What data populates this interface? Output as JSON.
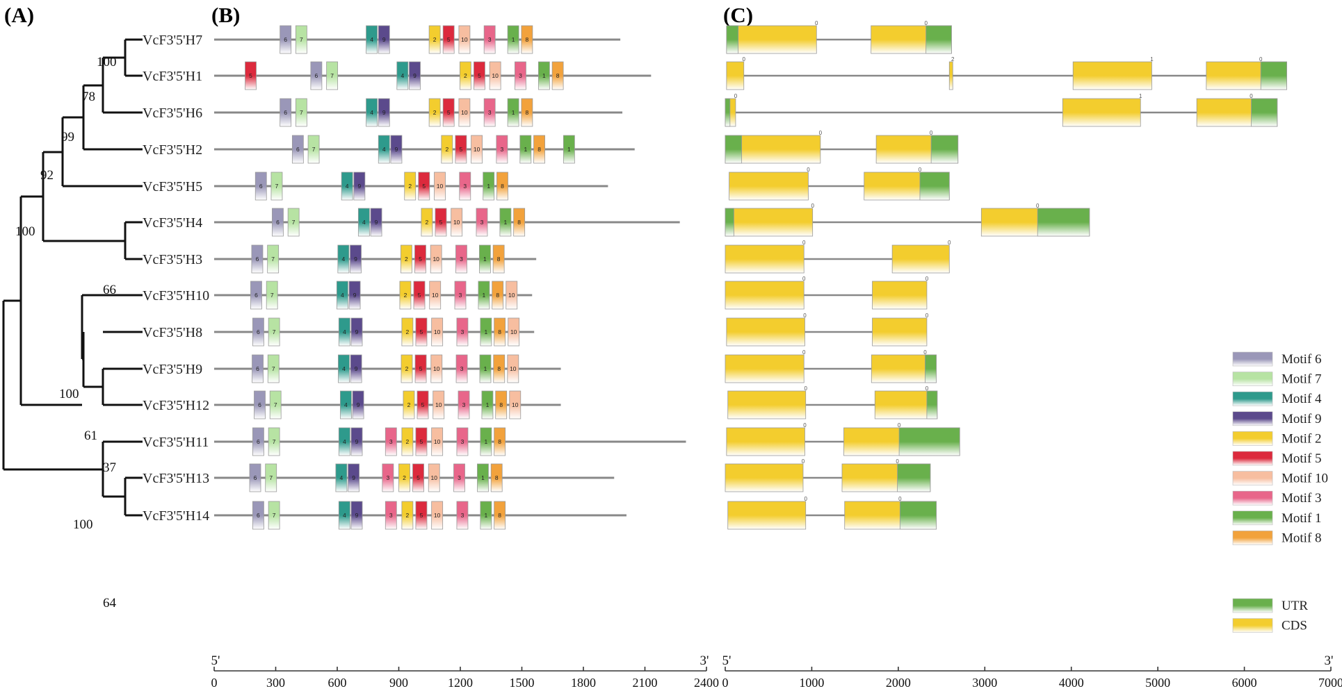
{
  "panels": {
    "a": "(A)",
    "b": "(B)",
    "c": "(C)"
  },
  "genes": [
    {
      "name": "VcF3'5'H7",
      "len": 1980,
      "motifs": [
        [
          "6",
          348
        ],
        [
          "7",
          425
        ],
        [
          "4",
          768
        ],
        [
          "9",
          828
        ],
        [
          "2",
          1075
        ],
        [
          "5",
          1143
        ],
        [
          "10",
          1220
        ],
        [
          "3",
          1343
        ],
        [
          "1",
          1458
        ],
        [
          "8",
          1525
        ]
      ],
      "gene": [
        [
          15,
          1055
        ],
        [
          1685,
          2615
        ]
      ],
      "utr": [
        [
          15,
          150
        ],
        [
          2320,
          2615
        ]
      ],
      "phase": [
        [
          1055,
          "0"
        ],
        [
          2320,
          "0"
        ]
      ]
    },
    {
      "name": "VcF3'5'H1",
      "len": 2130,
      "motifs": [
        [
          "5",
          178
        ],
        [
          "6",
          498
        ],
        [
          "7",
          575
        ],
        [
          "4",
          918
        ],
        [
          "9",
          978
        ],
        [
          "2",
          1225
        ],
        [
          "5",
          1293
        ],
        [
          "10",
          1370
        ],
        [
          "3",
          1493
        ],
        [
          "1",
          1608
        ],
        [
          "8",
          1675
        ]
      ],
      "gene": [
        [
          15,
          215
        ],
        [
          2590,
          2630
        ],
        [
          4020,
          4930
        ],
        [
          5560,
          6490
        ]
      ],
      "utr": [
        [
          6190,
          6490
        ]
      ],
      "phase": [
        [
          215,
          "0"
        ],
        [
          2630,
          "2"
        ],
        [
          4930,
          "1"
        ],
        [
          6190,
          "0"
        ]
      ]
    },
    {
      "name": "VcF3'5'H6",
      "len": 1990,
      "motifs": [
        [
          "6",
          348
        ],
        [
          "7",
          425
        ],
        [
          "4",
          768
        ],
        [
          "9",
          828
        ],
        [
          "2",
          1075
        ],
        [
          "5",
          1143
        ],
        [
          "10",
          1220
        ],
        [
          "3",
          1343
        ],
        [
          "1",
          1458
        ],
        [
          "8",
          1525
        ]
      ],
      "gene": [
        [
          0,
          120
        ],
        [
          3900,
          4800
        ],
        [
          5450,
          6380
        ]
      ],
      "utr": [
        [
          0,
          55
        ],
        [
          6080,
          6380
        ]
      ],
      "phase": [
        [
          120,
          "0"
        ],
        [
          4800,
          "1"
        ],
        [
          6080,
          "0"
        ]
      ]
    },
    {
      "name": "VcF3'5'H2",
      "len": 2050,
      "motifs": [
        [
          "6",
          408
        ],
        [
          "7",
          485
        ],
        [
          "4",
          828
        ],
        [
          "9",
          888
        ],
        [
          "2",
          1135
        ],
        [
          "5",
          1203
        ],
        [
          "10",
          1280
        ],
        [
          "3",
          1403
        ],
        [
          "1",
          1518
        ],
        [
          "8",
          1585
        ],
        [
          "1",
          1730
        ]
      ],
      "gene": [
        [
          0,
          1100
        ],
        [
          1745,
          2690
        ]
      ],
      "utr": [
        [
          0,
          190
        ],
        [
          2380,
          2690
        ]
      ],
      "phase": [
        [
          1100,
          "0"
        ],
        [
          2380,
          "0"
        ]
      ]
    },
    {
      "name": "VcF3'5'H5",
      "len": 1920,
      "motifs": [
        [
          "6",
          228
        ],
        [
          "7",
          305
        ],
        [
          "4",
          648
        ],
        [
          "9",
          708
        ],
        [
          "2",
          955
        ],
        [
          "5",
          1023
        ],
        [
          "10",
          1100
        ],
        [
          "3",
          1223
        ],
        [
          "1",
          1338
        ],
        [
          "8",
          1405
        ]
      ],
      "gene": [
        [
          45,
          960
        ],
        [
          1605,
          2590
        ]
      ],
      "utr": [
        [
          2250,
          2590
        ]
      ],
      "phase": [
        [
          960,
          "0"
        ],
        [
          2250,
          "0"
        ]
      ]
    },
    {
      "name": "VcF3'5'H4",
      "len": 2270,
      "motifs": [
        [
          "6",
          310
        ],
        [
          "7",
          387
        ],
        [
          "4",
          730
        ],
        [
          "9",
          790
        ],
        [
          "2",
          1037
        ],
        [
          "5",
          1105
        ],
        [
          "10",
          1182
        ],
        [
          "3",
          1305
        ],
        [
          "1",
          1420
        ],
        [
          "8",
          1487
        ]
      ],
      "gene": [
        [
          0,
          1010
        ],
        [
          2960,
          4210
        ]
      ],
      "utr": [
        [
          0,
          100
        ],
        [
          3610,
          4210
        ]
      ],
      "phase": [
        [
          1010,
          "0"
        ],
        [
          3610,
          "0"
        ]
      ]
    },
    {
      "name": "VcF3'5'H3",
      "len": 1570,
      "motifs": [
        [
          "6",
          210
        ],
        [
          "7",
          287
        ],
        [
          "4",
          630
        ],
        [
          "9",
          690
        ],
        [
          "2",
          937
        ],
        [
          "5",
          1005
        ],
        [
          "10",
          1082
        ],
        [
          "3",
          1205
        ],
        [
          "1",
          1320
        ],
        [
          "8",
          1387
        ]
      ],
      "gene": [
        [
          0,
          910
        ],
        [
          1930,
          2590
        ]
      ],
      "utr": [],
      "phase": [
        [
          910,
          "0"
        ],
        [
          2590,
          "0"
        ]
      ]
    },
    {
      "name": "VcF3'5'H10",
      "len": 1550,
      "motifs": [
        [
          "6",
          205
        ],
        [
          "7",
          282
        ],
        [
          "4",
          625
        ],
        [
          "9",
          685
        ],
        [
          "2",
          932
        ],
        [
          "5",
          1000
        ],
        [
          "10",
          1077
        ],
        [
          "3",
          1200
        ],
        [
          "1",
          1315
        ],
        [
          "8",
          1382
        ],
        [
          "10",
          1450
        ]
      ],
      "gene": [
        [
          0,
          910
        ],
        [
          1700,
          2330
        ]
      ],
      "utr": [],
      "phase": [
        [
          910,
          "0"
        ],
        [
          2330,
          "0"
        ]
      ]
    },
    {
      "name": "VcF3'5'H8",
      "len": 1560,
      "motifs": [
        [
          "6",
          215
        ],
        [
          "7",
          292
        ],
        [
          "4",
          635
        ],
        [
          "9",
          695
        ],
        [
          "2",
          942
        ],
        [
          "5",
          1010
        ],
        [
          "10",
          1087
        ],
        [
          "3",
          1210
        ],
        [
          "1",
          1325
        ],
        [
          "8",
          1392
        ],
        [
          "10",
          1460
        ]
      ],
      "gene": [
        [
          15,
          920
        ],
        [
          1700,
          2330
        ]
      ],
      "utr": [],
      "phase": [
        [
          920,
          "0"
        ],
        [
          2330,
          "0"
        ]
      ]
    },
    {
      "name": "VcF3'5'H9",
      "len": 1690,
      "motifs": [
        [
          "6",
          212
        ],
        [
          "7",
          289
        ],
        [
          "4",
          632
        ],
        [
          "9",
          692
        ],
        [
          "2",
          939
        ],
        [
          "5",
          1007
        ],
        [
          "10",
          1084
        ],
        [
          "3",
          1207
        ],
        [
          "1",
          1322
        ],
        [
          "8",
          1389
        ],
        [
          "10",
          1457
        ]
      ],
      "gene": [
        [
          0,
          910
        ],
        [
          1690,
          2440
        ]
      ],
      "utr": [
        [
          2310,
          2440
        ]
      ],
      "phase": [
        [
          910,
          "0"
        ],
        [
          2310,
          "0"
        ]
      ]
    },
    {
      "name": "VcF3'5'H12",
      "len": 1690,
      "motifs": [
        [
          "6",
          222
        ],
        [
          "7",
          299
        ],
        [
          "4",
          642
        ],
        [
          "9",
          702
        ],
        [
          "2",
          949
        ],
        [
          "5",
          1017
        ],
        [
          "10",
          1094
        ],
        [
          "3",
          1217
        ],
        [
          "1",
          1332
        ],
        [
          "8",
          1399
        ],
        [
          "10",
          1467
        ]
      ],
      "gene": [
        [
          30,
          930
        ],
        [
          1730,
          2450
        ]
      ],
      "utr": [
        [
          2330,
          2450
        ]
      ],
      "phase": [
        [
          930,
          "0"
        ],
        [
          2330,
          "0"
        ]
      ]
    },
    {
      "name": "VcF3'5'H11",
      "len": 2300,
      "motifs": [
        [
          "6",
          215
        ],
        [
          "7",
          292
        ],
        [
          "4",
          635
        ],
        [
          "9",
          695
        ],
        [
          "3",
          862
        ],
        [
          "2",
          942
        ],
        [
          "5",
          1010
        ],
        [
          "10",
          1087
        ],
        [
          "3",
          1210
        ],
        [
          "1",
          1325
        ],
        [
          "8",
          1392
        ]
      ],
      "gene": [
        [
          15,
          920
        ],
        [
          1370,
          2710
        ]
      ],
      "utr": [
        [
          2010,
          2710
        ]
      ],
      "phase": [
        [
          920,
          "0"
        ],
        [
          2010,
          "0"
        ]
      ]
    },
    {
      "name": "VcF3'5'H13",
      "len": 1950,
      "motifs": [
        [
          "6",
          200
        ],
        [
          "7",
          277
        ],
        [
          "4",
          620
        ],
        [
          "9",
          680
        ],
        [
          "3",
          847
        ],
        [
          "2",
          927
        ],
        [
          "5",
          995
        ],
        [
          "10",
          1072
        ],
        [
          "3",
          1195
        ],
        [
          "1",
          1310
        ],
        [
          "8",
          1377
        ]
      ],
      "gene": [
        [
          0,
          900
        ],
        [
          1350,
          2370
        ]
      ],
      "utr": [
        [
          1990,
          2370
        ]
      ],
      "phase": [
        [
          900,
          "0"
        ],
        [
          1990,
          "0"
        ]
      ]
    },
    {
      "name": "VcF3'5'H14",
      "len": 2010,
      "motifs": [
        [
          "6",
          215
        ],
        [
          "7",
          292
        ],
        [
          "4",
          635
        ],
        [
          "9",
          695
        ],
        [
          "3",
          862
        ],
        [
          "2",
          942
        ],
        [
          "5",
          1010
        ],
        [
          "10",
          1087
        ],
        [
          "3",
          1210
        ],
        [
          "1",
          1325
        ],
        [
          "8",
          1392
        ]
      ],
      "gene": [
        [
          30,
          930
        ],
        [
          1380,
          2440
        ]
      ],
      "utr": [
        [
          2020,
          2440
        ]
      ],
      "phase": [
        [
          930,
          "0"
        ],
        [
          2020,
          "0"
        ]
      ]
    }
  ],
  "bootstraps": [
    "100",
    "78",
    "99",
    "92",
    "100",
    "66",
    "100",
    "61",
    "37",
    "100",
    "64"
  ],
  "motif_colors": {
    "6": "#9a97b8",
    "7": "#b7e3a3",
    "4": "#2e9a8c",
    "9": "#5b4a8c",
    "2": "#f3cd2e",
    "5": "#dc2a3d",
    "10": "#f7bea0",
    "3": "#e8668a",
    "1": "#69b04c",
    "8": "#f2a23c"
  },
  "legend": [
    {
      "id": "6",
      "label": "Motif 6"
    },
    {
      "id": "7",
      "label": "Motif 7"
    },
    {
      "id": "4",
      "label": "Motif 4"
    },
    {
      "id": "9",
      "label": "Motif 9"
    },
    {
      "id": "2",
      "label": "Motif 2"
    },
    {
      "id": "5",
      "label": "Motif 5"
    },
    {
      "id": "10",
      "label": "Motif 10"
    },
    {
      "id": "3",
      "label": "Motif 3"
    },
    {
      "id": "1",
      "label": "Motif 1"
    },
    {
      "id": "8",
      "label": "Motif 8"
    }
  ],
  "structure_legend": [
    {
      "id": "utr",
      "label": "UTR",
      "color": "#69b04c"
    },
    {
      "id": "cds",
      "label": "CDS",
      "color": "#f3cd2e"
    }
  ],
  "axis_b": {
    "five": "5'",
    "three": "3'",
    "ticks": [
      "0",
      "300",
      "600",
      "900",
      "1200",
      "1500",
      "1800",
      "2100",
      "2400"
    ]
  },
  "axis_c": {
    "five": "5'",
    "three": "3'",
    "ticks": [
      "0",
      "1000",
      "2000",
      "3000",
      "4000",
      "5000",
      "6000",
      "7000"
    ]
  }
}
